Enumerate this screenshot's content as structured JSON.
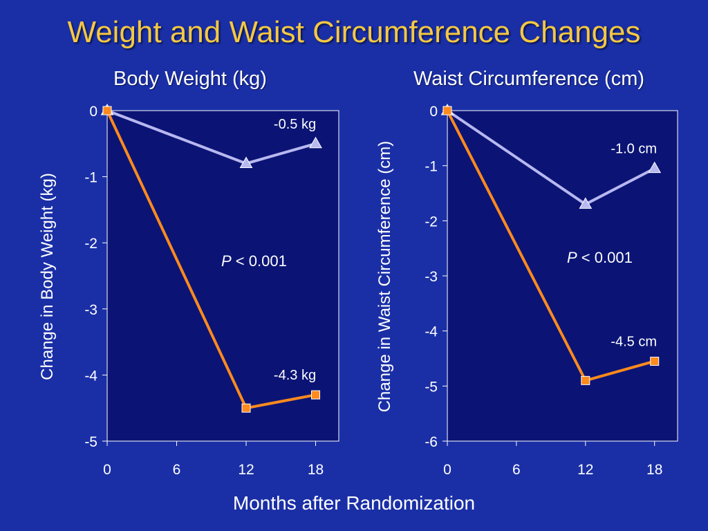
{
  "slide": {
    "title": "Weight and Waist Circumference Changes",
    "footer": "Months after Randomization",
    "colors": {
      "background": "#1a2fa6",
      "plot_area": "#0b1475",
      "title": "#f5c842",
      "series_a": "#ff8a1e",
      "series_b": "#b8b8f0"
    }
  },
  "chart_data": [
    {
      "type": "line",
      "title": "Body Weight (kg)",
      "xlabel": "",
      "ylabel": "Change in Body Weight (kg)",
      "x": [
        0,
        6,
        12,
        18
      ],
      "xticks": [
        "0",
        "6",
        "12",
        "18"
      ],
      "xlim": [
        0,
        20
      ],
      "ylim": [
        -5,
        0
      ],
      "yticks": [
        "0",
        "-1",
        "-2",
        "-3",
        "-4",
        "-5"
      ],
      "series": [
        {
          "marker": "triangle",
          "color": "#b8b8f0",
          "x": [
            0,
            12,
            18
          ],
          "values": [
            0,
            -0.8,
            -0.5
          ]
        },
        {
          "marker": "square",
          "color": "#ff8a1e",
          "x": [
            0,
            12,
            18
          ],
          "values": [
            0,
            -4.5,
            -4.3
          ]
        }
      ],
      "annotations": [
        {
          "text": "-0.5 kg",
          "x": 18,
          "y": -0.5
        },
        {
          "text": "-4.3 kg",
          "x": 18,
          "y": -4.3
        }
      ],
      "p_label": "P",
      "p_value": "< 0.001"
    },
    {
      "type": "line",
      "title": "Waist Circumference (cm)",
      "xlabel": "",
      "ylabel": "Change in Waist Circumference (cm)",
      "x": [
        0,
        6,
        12,
        18
      ],
      "xticks": [
        "0",
        "6",
        "12",
        "18"
      ],
      "xlim": [
        0,
        20
      ],
      "ylim": [
        -6,
        0
      ],
      "yticks": [
        "0",
        "-1",
        "-2",
        "-3",
        "-4",
        "-5",
        "-6"
      ],
      "series": [
        {
          "marker": "triangle",
          "color": "#b8b8f0",
          "x": [
            0,
            12,
            18
          ],
          "values": [
            0,
            -1.7,
            -1.05
          ]
        },
        {
          "marker": "square",
          "color": "#ff8a1e",
          "x": [
            0,
            12,
            18
          ],
          "values": [
            0,
            -4.9,
            -4.55
          ]
        }
      ],
      "annotations": [
        {
          "text": "-1.0 cm",
          "x": 18,
          "y": -1.05
        },
        {
          "text": "-4.5 cm",
          "x": 18,
          "y": -4.55
        }
      ],
      "p_label": "P",
      "p_value": "< 0.001"
    }
  ]
}
